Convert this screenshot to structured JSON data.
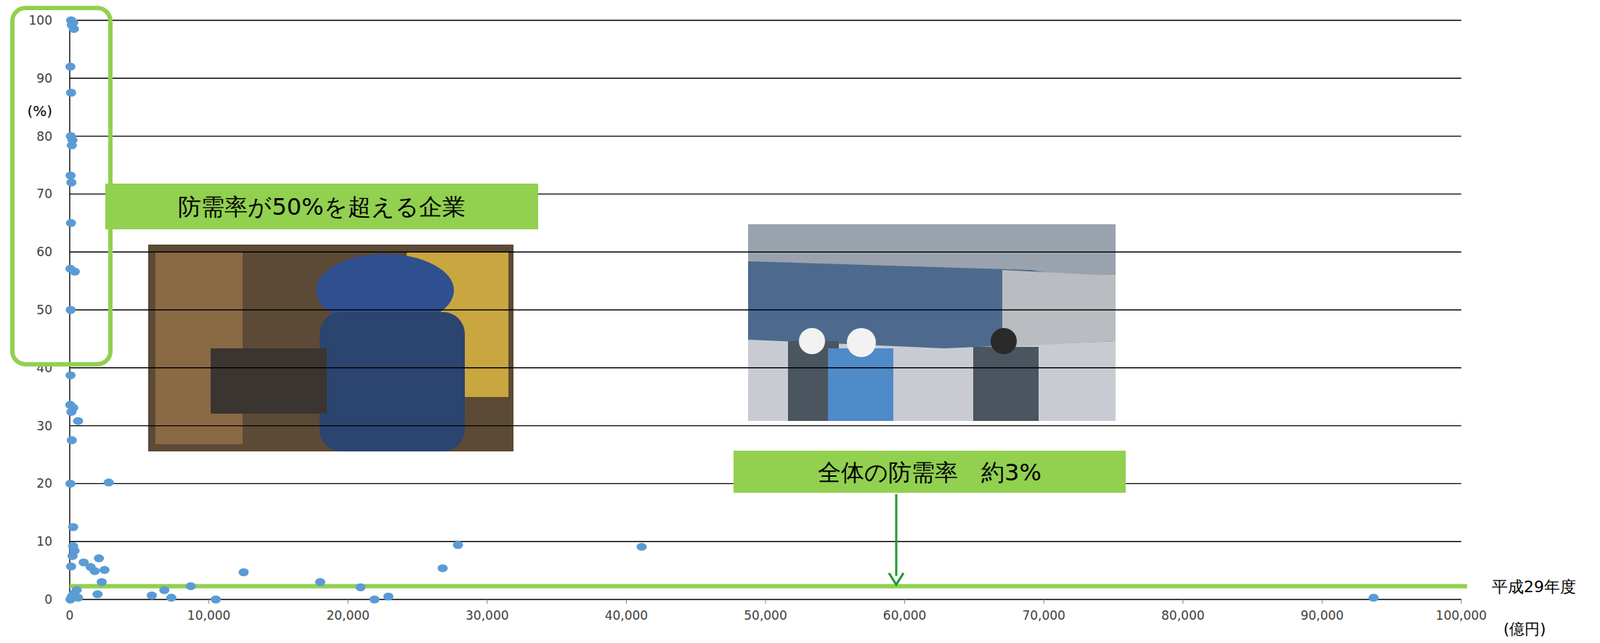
{
  "chart_data": {
    "type": "scatter",
    "color": "#5b9bd5",
    "marker": "circle",
    "grid": true,
    "x_label": "(億円)",
    "y_label": "(%)",
    "xlim": [
      0,
      100000
    ],
    "ylim": [
      0,
      100
    ],
    "xticks": [
      0,
      {
        "value": 10000,
        "label": "10,000"
      },
      {
        "value": 20000,
        "label": "20,000"
      },
      {
        "value": 30000,
        "label": "30,000"
      },
      {
        "value": 40000,
        "label": "40,000"
      },
      {
        "value": 50000,
        "label": "50,000"
      },
      {
        "value": 60000,
        "label": "60,000"
      },
      {
        "value": 70000,
        "label": "70,000"
      },
      {
        "value": 80000,
        "label": "80,000"
      },
      {
        "value": 90000,
        "label": "90,000"
      },
      {
        "value": 100000,
        "label": "100,000"
      }
    ],
    "yticks": [
      0,
      10,
      20,
      30,
      40,
      50,
      60,
      70,
      80,
      90,
      100
    ],
    "x": [
      100,
      250,
      150,
      300,
      50,
      100,
      80,
      200,
      150,
      60,
      120,
      90,
      50,
      370,
      70,
      60,
      40,
      250,
      120,
      600,
      150,
      50,
      250,
      250,
      350,
      200,
      100,
      150,
      50,
      2800,
      1000,
      1500,
      1800,
      2100,
      2500,
      2300,
      2000,
      500,
      600,
      300,
      5900,
      6800,
      7300,
      8700,
      10500,
      12500,
      18000,
      20900,
      21900,
      22900,
      26800,
      27900,
      41100,
      93700
    ],
    "values": [
      100,
      99.6,
      99.2,
      98.5,
      92,
      87.5,
      80,
      79.3,
      78.4,
      73.2,
      72,
      65,
      57.1,
      56.6,
      50,
      38.7,
      33.6,
      33.1,
      32.4,
      30.8,
      27.5,
      20,
      12.5,
      9.2,
      8.4,
      7.5,
      5.7,
      0.5,
      0,
      20.2,
      6.4,
      5.6,
      4.9,
      7.1,
      5.1,
      3.0,
      0.9,
      1.6,
      0.3,
      1.0,
      0.7,
      1.6,
      0.3,
      2.3,
      0,
      4.7,
      3.0,
      2.1,
      0,
      0.5,
      5.4,
      9.4,
      9.1,
      0.3
    ],
    "reference_line": {
      "value": 2.3,
      "label": "平成29年度",
      "color": "#92d050"
    },
    "annotations": [
      {
        "text": "防需率が50%を超える企業"
      },
      {
        "text": "全体の防需率　約3%"
      }
    ]
  }
}
